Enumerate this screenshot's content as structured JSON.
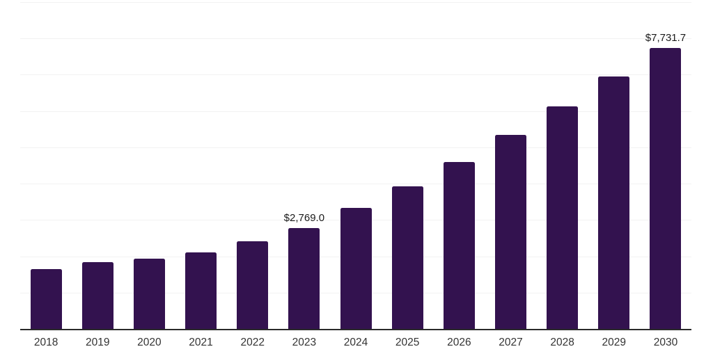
{
  "chart_data": {
    "type": "bar",
    "title": "",
    "xlabel": "",
    "ylabel": "",
    "categories": [
      "2018",
      "2019",
      "2020",
      "2021",
      "2022",
      "2023",
      "2024",
      "2025",
      "2026",
      "2027",
      "2028",
      "2029",
      "2030"
    ],
    "values": [
      1640,
      1830,
      1930,
      2100,
      2405,
      2769.0,
      3330,
      3935,
      4600,
      5345,
      6130,
      6945,
      7731.7
    ],
    "annotations": [
      {
        "category": "2023",
        "label": "$2,769.0"
      },
      {
        "category": "2030",
        "label": "$7,731.7"
      }
    ],
    "ylim": [
      0,
      9000
    ],
    "grid_step": 1000,
    "grid": "horizontal-only",
    "legend": "none",
    "y_axis_ticks_visible": false,
    "bar_color": "#33124F",
    "axis_line_color": "#2a2a2a",
    "gridline_color": "#f2f2f2",
    "tick_label_color": "#333333",
    "annotation_text_color": "#1a1a1a"
  }
}
